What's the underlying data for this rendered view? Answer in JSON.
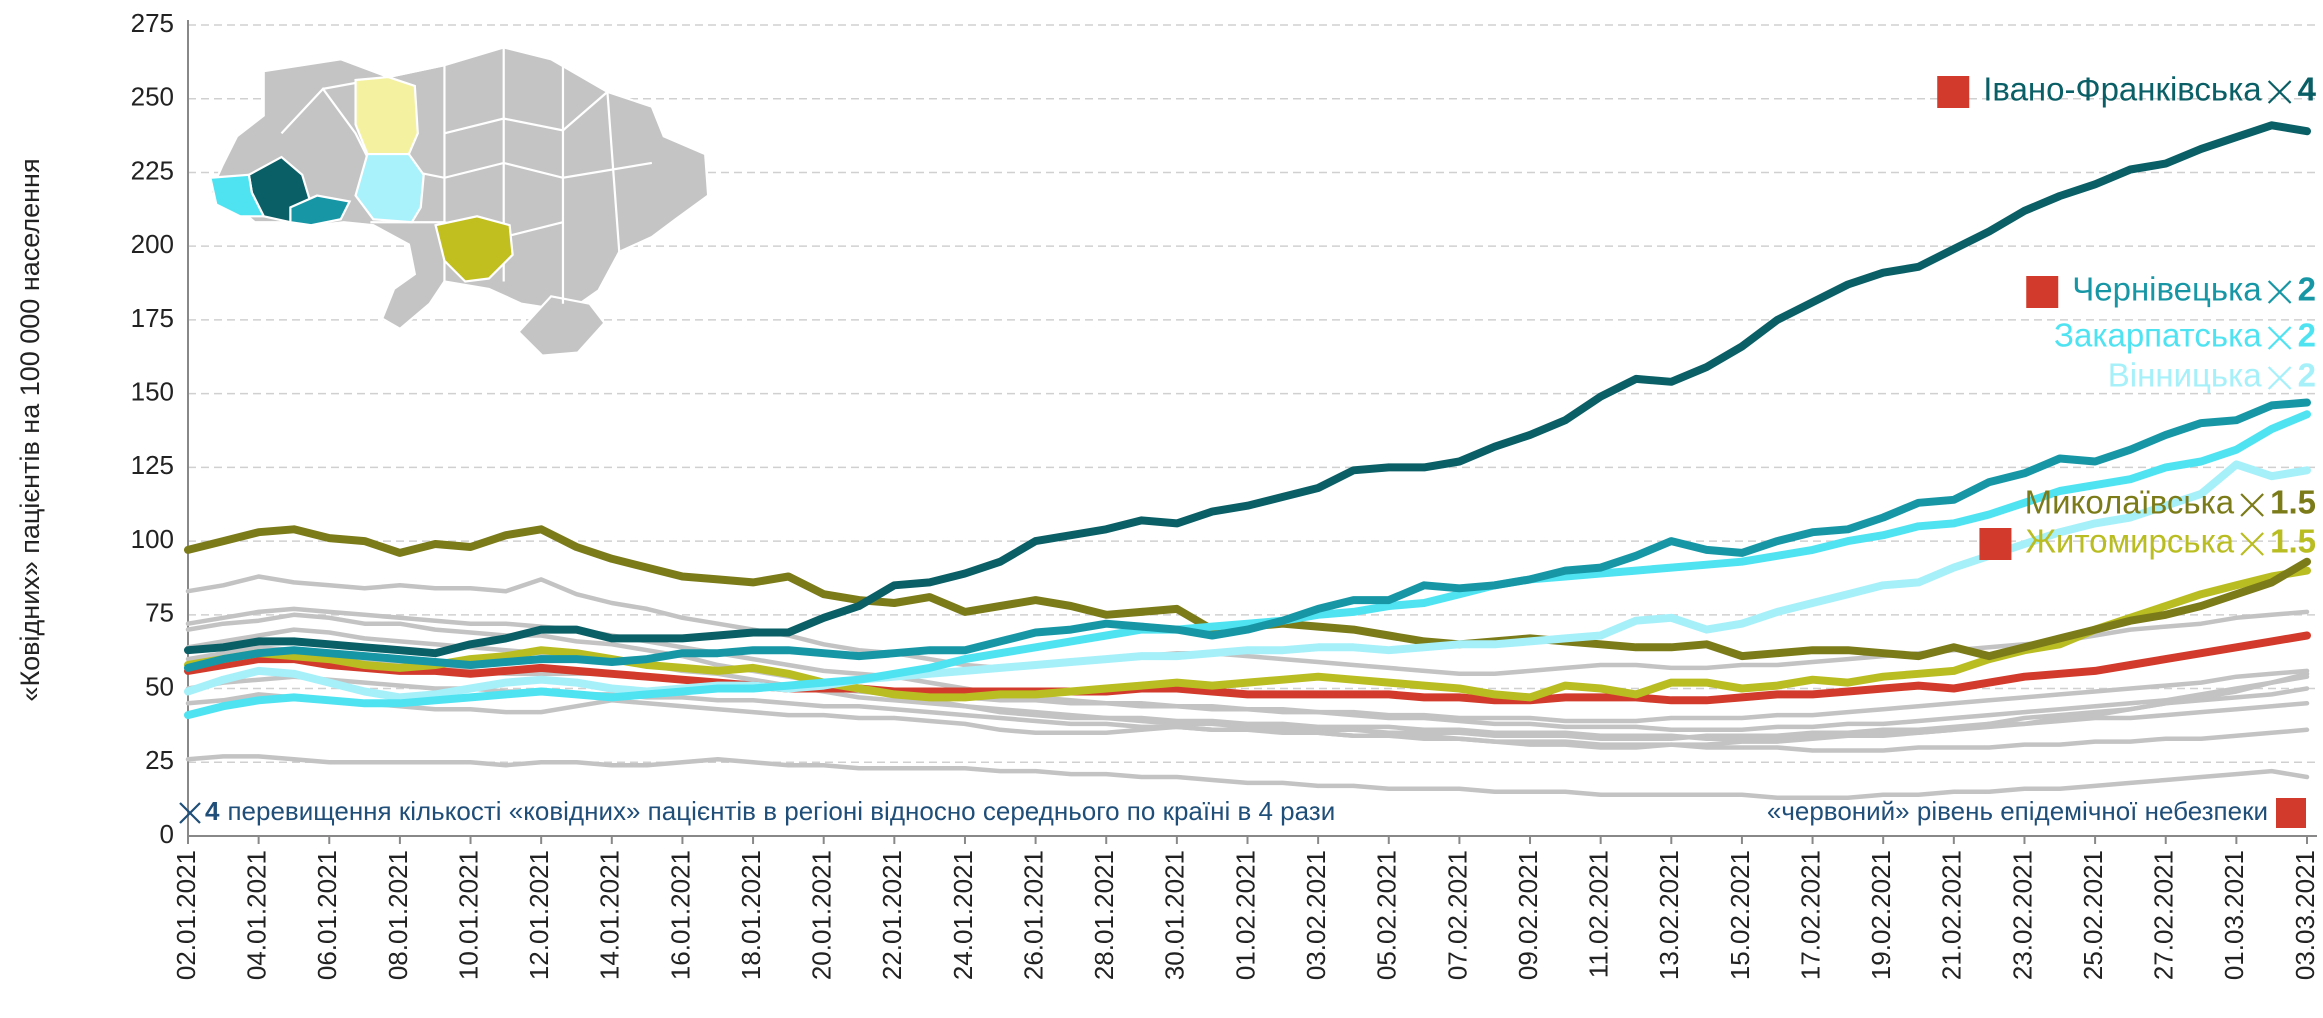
{
  "chart_data": {
    "type": "line",
    "y_label": "«Ковідних» пацієнтів на 100 000 населення",
    "categories": [
      "02.01.2021",
      null,
      "04.01.2021",
      null,
      "06.01.2021",
      null,
      "08.01.2021",
      null,
      "10.01.2021",
      null,
      "12.01.2021",
      null,
      "14.01.2021",
      null,
      "16.01.2021",
      null,
      "18.01.2021",
      null,
      "20.01.2021",
      null,
      "22.01.2021",
      null,
      "24.01.2021",
      null,
      "26.01.2021",
      null,
      "28.01.2021",
      null,
      "30.01.2021",
      null,
      "01.02.2021",
      null,
      "03.02.2021",
      null,
      "05.02.2021",
      null,
      "07.02.2021",
      null,
      "09.02.2021",
      null,
      "11.02.2021",
      null,
      "13.02.2021",
      null,
      "15.02.2021",
      null,
      "17.02.2021",
      null,
      "19.02.2021",
      null,
      "21.02.2021",
      null,
      "23.02.2021",
      null,
      "25.02.2021",
      null,
      "27.02.2021",
      null,
      "01.03.2021",
      null,
      "03.03.2021"
    ],
    "ylim": [
      0,
      275
    ],
    "yticks": [
      0,
      25,
      50,
      75,
      100,
      125,
      150,
      175,
      200,
      225,
      250,
      275
    ],
    "grid": true,
    "series": [
      {
        "color": "#c3c3c3",
        "values": [
          83,
          85,
          88,
          86,
          85,
          84,
          85,
          84,
          84,
          83,
          87,
          82,
          79,
          77,
          74,
          72,
          70,
          68,
          65,
          63,
          62,
          60,
          58,
          57,
          58,
          59,
          60,
          61,
          62,
          62,
          61,
          60,
          59,
          58,
          57,
          56,
          55,
          55,
          56,
          57,
          58,
          58,
          57,
          57,
          58,
          58,
          59,
          60,
          61,
          62,
          63,
          64,
          65,
          66,
          68,
          70,
          71,
          72,
          74,
          75,
          76
        ]
      },
      {
        "color": "#c3c3c3",
        "values": [
          72,
          74,
          76,
          77,
          76,
          75,
          74,
          73,
          72,
          72,
          71,
          70,
          68,
          66,
          64,
          62,
          60,
          58,
          56,
          55,
          54,
          52,
          50,
          48,
          47,
          46,
          45,
          45,
          44,
          44,
          43,
          43,
          42,
          42,
          41,
          41,
          40,
          40,
          40,
          39,
          39,
          39,
          40,
          40,
          40,
          41,
          41,
          42,
          43,
          44,
          45,
          46,
          47,
          48,
          49,
          50,
          51,
          52,
          54,
          55,
          56
        ]
      },
      {
        "color": "#c3c3c3",
        "values": [
          64,
          66,
          68,
          70,
          69,
          67,
          66,
          65,
          64,
          63,
          62,
          61,
          60,
          58,
          56,
          55,
          53,
          51,
          49,
          47,
          46,
          45,
          44,
          42,
          41,
          40,
          40,
          39,
          38,
          38,
          37,
          37,
          36,
          36,
          35,
          35,
          35,
          34,
          34,
          34,
          33,
          33,
          33,
          34,
          34,
          34,
          35,
          35,
          36,
          36,
          37,
          38,
          38,
          39,
          40,
          40,
          41,
          42,
          43,
          44,
          45
        ]
      },
      {
        "color": "#c3c3c3",
        "values": [
          50,
          52,
          53,
          54,
          53,
          52,
          51,
          50,
          50,
          49,
          49,
          48,
          48,
          47,
          47,
          46,
          46,
          45,
          44,
          44,
          43,
          42,
          41,
          40,
          39,
          38,
          38,
          37,
          37,
          36,
          36,
          35,
          35,
          34,
          34,
          33,
          33,
          32,
          32,
          32,
          31,
          31,
          31,
          30,
          30,
          30,
          29,
          29,
          29,
          30,
          30,
          30,
          31,
          31,
          32,
          32,
          33,
          33,
          34,
          35,
          36
        ]
      },
      {
        "color": "#c3c3c3",
        "values": [
          26,
          27,
          27,
          26,
          25,
          25,
          25,
          25,
          25,
          24,
          25,
          25,
          24,
          24,
          25,
          26,
          25,
          24,
          24,
          23,
          23,
          23,
          23,
          22,
          22,
          21,
          21,
          20,
          20,
          19,
          18,
          18,
          17,
          17,
          16,
          16,
          16,
          15,
          15,
          15,
          14,
          14,
          14,
          14,
          14,
          13,
          13,
          13,
          14,
          14,
          15,
          15,
          16,
          16,
          17,
          18,
          19,
          20,
          21,
          22,
          20
        ]
      },
      {
        "color": "#c3c3c3",
        "values": [
          45,
          46,
          48,
          47,
          46,
          45,
          44,
          43,
          43,
          42,
          42,
          44,
          46,
          45,
          44,
          43,
          42,
          41,
          41,
          40,
          40,
          39,
          38,
          36,
          35,
          35,
          35,
          36,
          37,
          36,
          36,
          36,
          35,
          34,
          34,
          34,
          33,
          32,
          31,
          31,
          30,
          30,
          31,
          31,
          32,
          32,
          33,
          34,
          34,
          35,
          36,
          38,
          40,
          41,
          42,
          43,
          45,
          46,
          47,
          48,
          50
        ]
      },
      {
        "color": "#c3c3c3",
        "values": [
          60,
          62,
          64,
          63,
          61,
          60,
          58,
          57,
          56,
          55,
          55,
          55,
          55,
          54,
          53,
          52,
          52,
          51,
          50,
          49,
          48,
          47,
          47,
          46,
          46,
          45,
          45,
          44,
          44,
          43,
          43,
          42,
          42,
          41,
          40,
          40,
          39,
          38,
          38,
          37,
          37,
          37,
          36,
          36,
          36,
          37,
          37,
          38,
          38,
          39,
          40,
          41,
          42,
          43,
          44,
          45,
          46,
          48,
          50,
          52,
          55
        ]
      },
      {
        "color": "#c3c3c3",
        "values": [
          70,
          72,
          73,
          75,
          74,
          72,
          72,
          70,
          69,
          68,
          68,
          66,
          65,
          63,
          61,
          58,
          56,
          54,
          52,
          50,
          48,
          46,
          44,
          43,
          42,
          41,
          40,
          40,
          39,
          39,
          38,
          38,
          37,
          37,
          37,
          36,
          36,
          35,
          35,
          35,
          34,
          34,
          34,
          33,
          33,
          33,
          34,
          34,
          35,
          35,
          36,
          37,
          38,
          40,
          41,
          43,
          45,
          47,
          49,
          52,
          54
        ]
      },
      {
        "color": "#d23b2b",
        "values": [
          56,
          58,
          60,
          60,
          58,
          57,
          56,
          56,
          55,
          56,
          57,
          56,
          55,
          54,
          53,
          52,
          51,
          50,
          50,
          50,
          49,
          49,
          49,
          49,
          49,
          49,
          49,
          50,
          50,
          49,
          48,
          48,
          48,
          48,
          48,
          47,
          47,
          46,
          46,
          47,
          47,
          47,
          46,
          46,
          47,
          48,
          48,
          49,
          50,
          51,
          50,
          52,
          54,
          55,
          56,
          58,
          60,
          62,
          64,
          66,
          68
        ]
      },
      {
        "name": "Житомирська",
        "ratio": 1.5,
        "red_level": true,
        "color": "#b9bd22",
        "values": [
          58,
          60,
          62,
          61,
          60,
          58,
          57,
          58,
          60,
          61,
          63,
          62,
          60,
          58,
          57,
          56,
          57,
          55,
          52,
          50,
          48,
          47,
          47,
          48,
          48,
          49,
          50,
          51,
          52,
          51,
          52,
          53,
          54,
          53,
          52,
          51,
          50,
          48,
          47,
          51,
          50,
          48,
          52,
          52,
          50,
          51,
          53,
          52,
          54,
          55,
          56,
          60,
          63,
          65,
          70,
          74,
          78,
          82,
          85,
          88,
          90
        ]
      },
      {
        "name": "Миколаївська",
        "ratio": 1.5,
        "red_level": false,
        "color": "#7b7b1a",
        "values": [
          97,
          100,
          103,
          104,
          101,
          100,
          96,
          99,
          98,
          102,
          104,
          98,
          94,
          91,
          88,
          87,
          86,
          88,
          82,
          80,
          79,
          81,
          76,
          78,
          80,
          78,
          75,
          76,
          77,
          70,
          71,
          72,
          71,
          70,
          68,
          66,
          65,
          66,
          67,
          66,
          65,
          64,
          64,
          65,
          61,
          62,
          63,
          63,
          62,
          61,
          64,
          61,
          64,
          67,
          70,
          73,
          75,
          78,
          82,
          86,
          93
        ]
      },
      {
        "name": "Вінницька",
        "ratio": 2,
        "red_level": false,
        "color": "#a6f0fa",
        "values": [
          49,
          53,
          56,
          55,
          52,
          49,
          47,
          48,
          50,
          52,
          53,
          52,
          50,
          49,
          50,
          51,
          51,
          50,
          51,
          53,
          54,
          55,
          56,
          57,
          58,
          59,
          60,
          61,
          61,
          62,
          63,
          63,
          64,
          64,
          63,
          64,
          65,
          65,
          66,
          67,
          68,
          73,
          74,
          70,
          72,
          76,
          79,
          82,
          85,
          86,
          91,
          95,
          99,
          103,
          106,
          108,
          112,
          116,
          126,
          122,
          124
        ]
      },
      {
        "name": "Закарпатська",
        "ratio": 2,
        "red_level": false,
        "color": "#4fe3f2",
        "values": [
          41,
          44,
          46,
          47,
          46,
          45,
          45,
          46,
          47,
          48,
          49,
          48,
          47,
          48,
          49,
          50,
          50,
          51,
          52,
          53,
          55,
          57,
          60,
          62,
          64,
          66,
          68,
          70,
          70,
          71,
          72,
          73,
          75,
          76,
          78,
          79,
          82,
          85,
          87,
          88,
          89,
          90,
          91,
          92,
          93,
          95,
          97,
          100,
          102,
          105,
          106,
          109,
          113,
          117,
          119,
          121,
          125,
          127,
          131,
          138,
          143
        ]
      },
      {
        "name": "Чернівецька",
        "ratio": 2,
        "red_level": true,
        "color": "#1797a6",
        "values": [
          57,
          60,
          62,
          63,
          62,
          61,
          60,
          59,
          58,
          59,
          60,
          60,
          59,
          60,
          62,
          62,
          63,
          63,
          62,
          61,
          62,
          63,
          63,
          66,
          69,
          70,
          72,
          71,
          70,
          68,
          70,
          73,
          77,
          80,
          80,
          85,
          84,
          85,
          87,
          90,
          91,
          95,
          100,
          97,
          96,
          100,
          103,
          104,
          108,
          113,
          114,
          120,
          123,
          128,
          127,
          131,
          136,
          140,
          141,
          146,
          147
        ]
      },
      {
        "name": "Івано-Франківська",
        "ratio": 4,
        "red_level": true,
        "color": "#0a5f66",
        "values": [
          63,
          64,
          66,
          66,
          65,
          64,
          63,
          62,
          65,
          67,
          70,
          70,
          67,
          67,
          67,
          68,
          69,
          69,
          74,
          78,
          85,
          86,
          89,
          93,
          100,
          102,
          104,
          107,
          106,
          110,
          112,
          115,
          118,
          124,
          125,
          125,
          127,
          132,
          136,
          141,
          149,
          155,
          154,
          159,
          166,
          175,
          181,
          187,
          191,
          193,
          199,
          205,
          212,
          217,
          221,
          226,
          228,
          233,
          237,
          241,
          239
        ]
      }
    ],
    "note": {
      "ratio": 4,
      "text": "перевищення кількості «ковідних» пацієнтів в регіоні відносно середнього по країні в 4 рази"
    },
    "red_note": {
      "text": "«червоний» рівень епідемічної небезпеки"
    }
  }
}
